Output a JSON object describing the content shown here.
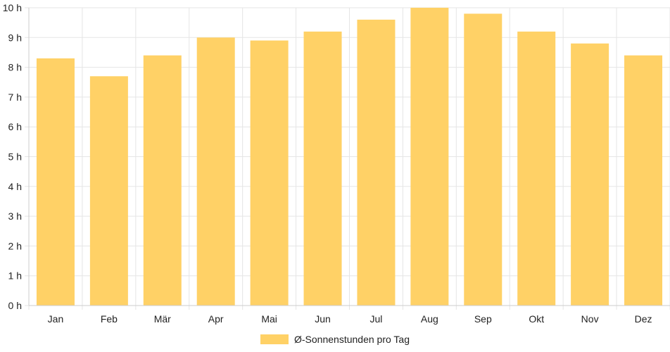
{
  "chart_data": {
    "type": "bar",
    "title": "",
    "xlabel": "",
    "ylabel": "",
    "categories": [
      "Jan",
      "Feb",
      "Mär",
      "Apr",
      "Mai",
      "Jun",
      "Jul",
      "Aug",
      "Sep",
      "Okt",
      "Nov",
      "Dez"
    ],
    "series": [
      {
        "name": "Ø-Sonnenstunden pro Tag",
        "values": [
          8.3,
          7.7,
          8.4,
          9.0,
          8.9,
          9.2,
          9.6,
          10.0,
          9.8,
          9.2,
          8.8,
          8.4
        ],
        "color": "#ffd166"
      }
    ],
    "ylim": [
      0,
      10
    ],
    "y_ticks": [
      "0 h",
      "1 h",
      "2 h",
      "3 h",
      "4 h",
      "5 h",
      "6 h",
      "7 h",
      "8 h",
      "9 h",
      "10 h"
    ],
    "grid": true,
    "legend_position": "bottom"
  }
}
